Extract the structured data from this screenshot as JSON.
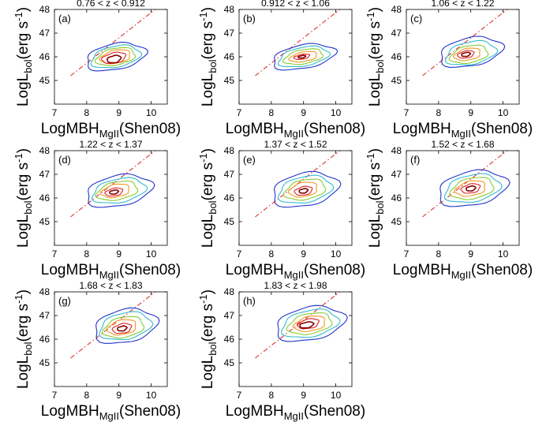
{
  "chart_data": [
    {
      "type": "contour",
      "panel_label": "(a)",
      "title": "0.76 < z < 0.912",
      "xlabel": "LogMBH",
      "xlabel_sub": "MgII",
      "xlabel_suffix": "(Shen08)",
      "ylabel": "LogL",
      "ylabel_sub": "bol",
      "ylabel_suffix": "(erg s",
      "ylabel_sup": "-1",
      "ylabel_close": ")",
      "xlim": [
        7,
        10.5
      ],
      "ylim": [
        44,
        48
      ],
      "xticks": [
        7,
        8,
        9,
        10
      ],
      "yticks": [
        45,
        46,
        47,
        48
      ],
      "reference_line": {
        "style": "dash-dot",
        "color": "#e03030",
        "points": [
          [
            7.5,
            45.2
          ],
          [
            10.5,
            48.4
          ]
        ]
      },
      "contours": [
        {
          "level": 1,
          "color": "#2233cc",
          "cx": 8.9,
          "cy": 46.0,
          "rx": 0.95,
          "ry": 0.55
        },
        {
          "level": 2,
          "color": "#33bbcc",
          "cx": 8.9,
          "cy": 46.0,
          "rx": 0.78,
          "ry": 0.45
        },
        {
          "level": 3,
          "color": "#88cc33",
          "cx": 8.9,
          "cy": 46.0,
          "rx": 0.62,
          "ry": 0.36
        },
        {
          "level": 4,
          "color": "#ee9922",
          "cx": 8.9,
          "cy": 46.0,
          "rx": 0.48,
          "ry": 0.28
        },
        {
          "level": 5,
          "color": "#dd2222",
          "cx": 8.85,
          "cy": 45.95,
          "rx": 0.38,
          "ry": 0.22
        },
        {
          "level": 6,
          "color": "#880000",
          "cx": 8.85,
          "cy": 45.9,
          "rx": 0.22,
          "ry": 0.15
        }
      ]
    },
    {
      "type": "contour",
      "panel_label": "(b)",
      "title": "0.912 < z < 1.06",
      "xlabel": "LogMBH",
      "xlabel_sub": "MgII",
      "xlabel_suffix": "(Shen08)",
      "ylabel": "LogL",
      "ylabel_sub": "bol",
      "ylabel_suffix": "(erg s",
      "ylabel_sup": "-1",
      "ylabel_close": ")",
      "xlim": [
        7,
        10.5
      ],
      "ylim": [
        44,
        48
      ],
      "xticks": [
        7,
        8,
        9,
        10
      ],
      "yticks": [
        45,
        46,
        47,
        48
      ],
      "reference_line": {
        "style": "dash-dot",
        "color": "#e03030",
        "points": [
          [
            7.5,
            45.2
          ],
          [
            10.5,
            48.4
          ]
        ]
      },
      "contours": [
        {
          "level": 1,
          "color": "#2233cc",
          "cx": 9.0,
          "cy": 46.0,
          "rx": 1.0,
          "ry": 0.5
        },
        {
          "level": 2,
          "color": "#33bbcc",
          "cx": 9.0,
          "cy": 46.0,
          "rx": 0.8,
          "ry": 0.4
        },
        {
          "level": 3,
          "color": "#88cc33",
          "cx": 9.0,
          "cy": 46.0,
          "rx": 0.62,
          "ry": 0.3
        },
        {
          "level": 4,
          "color": "#ee9922",
          "cx": 9.0,
          "cy": 46.0,
          "rx": 0.44,
          "ry": 0.2
        },
        {
          "level": 5,
          "color": "#dd2222",
          "cx": 8.95,
          "cy": 46.0,
          "rx": 0.25,
          "ry": 0.1
        },
        {
          "level": 6,
          "color": "#880000",
          "cx": 8.95,
          "cy": 46.0,
          "rx": 0.12,
          "ry": 0.05
        }
      ]
    },
    {
      "type": "contour",
      "panel_label": "(c)",
      "title": "1.06 < z < 1.22",
      "xlabel": "LogMBH",
      "xlabel_sub": "MgII",
      "xlabel_suffix": "(Shen08)",
      "ylabel": "LogL",
      "ylabel_sub": "bol",
      "ylabel_suffix": "(erg s",
      "ylabel_sup": "-1",
      "ylabel_close": ")",
      "xlim": [
        7,
        10.5
      ],
      "ylim": [
        44,
        48
      ],
      "xticks": [
        7,
        8,
        9,
        10
      ],
      "yticks": [
        45,
        46,
        47,
        48
      ],
      "reference_line": {
        "style": "dash-dot",
        "color": "#e03030",
        "points": [
          [
            7.5,
            45.2
          ],
          [
            10.5,
            48.4
          ]
        ]
      },
      "contours": [
        {
          "level": 1,
          "color": "#2233cc",
          "cx": 9.0,
          "cy": 46.2,
          "rx": 1.0,
          "ry": 0.6
        },
        {
          "level": 2,
          "color": "#33bbcc",
          "cx": 9.0,
          "cy": 46.15,
          "rx": 0.8,
          "ry": 0.48
        },
        {
          "level": 3,
          "color": "#88cc33",
          "cx": 8.95,
          "cy": 46.1,
          "rx": 0.6,
          "ry": 0.36
        },
        {
          "level": 4,
          "color": "#ee9922",
          "cx": 8.9,
          "cy": 46.1,
          "rx": 0.42,
          "ry": 0.25
        },
        {
          "level": 5,
          "color": "#dd2222",
          "cx": 8.85,
          "cy": 46.1,
          "rx": 0.26,
          "ry": 0.15
        },
        {
          "level": 6,
          "color": "#880000",
          "cx": 8.85,
          "cy": 46.1,
          "rx": 0.14,
          "ry": 0.08
        }
      ]
    },
    {
      "type": "contour",
      "panel_label": "(d)",
      "title": "1.22 < z < 1.37",
      "xlabel": "LogMBH",
      "xlabel_sub": "MgII",
      "xlabel_suffix": "(Shen08)",
      "ylabel": "LogL",
      "ylabel_sub": "bol",
      "ylabel_suffix": "(erg s",
      "ylabel_sup": "-1",
      "ylabel_close": ")",
      "xlim": [
        7,
        10.5
      ],
      "ylim": [
        44,
        48
      ],
      "xticks": [
        7,
        8,
        9,
        10
      ],
      "yticks": [
        45,
        46,
        47,
        48
      ],
      "reference_line": {
        "style": "dash-dot",
        "color": "#e03030",
        "points": [
          [
            7.5,
            45.2
          ],
          [
            10.5,
            48.4
          ]
        ]
      },
      "contours": [
        {
          "level": 1,
          "color": "#2233cc",
          "cx": 9.0,
          "cy": 46.3,
          "rx": 1.05,
          "ry": 0.65
        },
        {
          "level": 2,
          "color": "#33bbcc",
          "cx": 9.0,
          "cy": 46.3,
          "rx": 0.85,
          "ry": 0.5
        },
        {
          "level": 3,
          "color": "#88cc33",
          "cx": 8.95,
          "cy": 46.3,
          "rx": 0.65,
          "ry": 0.38
        },
        {
          "level": 4,
          "color": "#ee9922",
          "cx": 8.9,
          "cy": 46.3,
          "rx": 0.45,
          "ry": 0.27
        },
        {
          "level": 5,
          "color": "#dd2222",
          "cx": 8.85,
          "cy": 46.25,
          "rx": 0.28,
          "ry": 0.16
        },
        {
          "level": 6,
          "color": "#880000",
          "cx": 8.85,
          "cy": 46.25,
          "rx": 0.14,
          "ry": 0.08
        }
      ]
    },
    {
      "type": "contour",
      "panel_label": "(e)",
      "title": "1.37 < z < 1.52",
      "xlabel": "LogMBH",
      "xlabel_sub": "MgII",
      "xlabel_suffix": "(Shen08)",
      "ylabel": "LogL",
      "ylabel_sub": "bol",
      "ylabel_suffix": "(erg s",
      "ylabel_sup": "-1",
      "ylabel_close": ")",
      "xlim": [
        7,
        10.5
      ],
      "ylim": [
        44,
        48
      ],
      "xticks": [
        7,
        8,
        9,
        10
      ],
      "yticks": [
        45,
        46,
        47,
        48
      ],
      "reference_line": {
        "style": "dash-dot",
        "color": "#e03030",
        "points": [
          [
            7.5,
            45.2
          ],
          [
            10.5,
            48.4
          ]
        ]
      },
      "contours": [
        {
          "level": 1,
          "color": "#2233cc",
          "cx": 9.05,
          "cy": 46.35,
          "rx": 1.05,
          "ry": 0.7
        },
        {
          "level": 2,
          "color": "#33bbcc",
          "cx": 9.05,
          "cy": 46.35,
          "rx": 0.85,
          "ry": 0.55
        },
        {
          "level": 3,
          "color": "#88cc33",
          "cx": 9.05,
          "cy": 46.35,
          "rx": 0.65,
          "ry": 0.42
        },
        {
          "level": 4,
          "color": "#ee9922",
          "cx": 9.0,
          "cy": 46.35,
          "rx": 0.45,
          "ry": 0.3
        },
        {
          "level": 5,
          "color": "#dd2222",
          "cx": 9.0,
          "cy": 46.3,
          "rx": 0.28,
          "ry": 0.18
        },
        {
          "level": 6,
          "color": "#880000",
          "cx": 9.0,
          "cy": 46.3,
          "rx": 0.14,
          "ry": 0.09
        }
      ]
    },
    {
      "type": "contour",
      "panel_label": "(f)",
      "title": "1.52 < z < 1.68",
      "xlabel": "LogMBH",
      "xlabel_sub": "MgII",
      "xlabel_suffix": "(Shen08)",
      "ylabel": "LogL",
      "ylabel_sub": "bol",
      "ylabel_suffix": "(erg s",
      "ylabel_sup": "-1",
      "ylabel_close": ")",
      "xlim": [
        7,
        10.5
      ],
      "ylim": [
        44,
        48
      ],
      "xticks": [
        7,
        8,
        9,
        10
      ],
      "yticks": [
        45,
        46,
        47,
        48
      ],
      "reference_line": {
        "style": "dash-dot",
        "color": "#e03030",
        "points": [
          [
            7.5,
            45.2
          ],
          [
            10.5,
            48.4
          ]
        ]
      },
      "contours": [
        {
          "level": 1,
          "color": "#2233cc",
          "cx": 9.05,
          "cy": 46.4,
          "rx": 1.1,
          "ry": 0.72
        },
        {
          "level": 2,
          "color": "#33bbcc",
          "cx": 9.05,
          "cy": 46.4,
          "rx": 0.88,
          "ry": 0.57
        },
        {
          "level": 3,
          "color": "#88cc33",
          "cx": 9.05,
          "cy": 46.4,
          "rx": 0.68,
          "ry": 0.44
        },
        {
          "level": 4,
          "color": "#ee9922",
          "cx": 9.0,
          "cy": 46.4,
          "rx": 0.48,
          "ry": 0.31
        },
        {
          "level": 5,
          "color": "#dd2222",
          "cx": 9.0,
          "cy": 46.4,
          "rx": 0.3,
          "ry": 0.19
        },
        {
          "level": 6,
          "color": "#880000",
          "cx": 9.0,
          "cy": 46.4,
          "rx": 0.15,
          "ry": 0.1
        }
      ]
    },
    {
      "type": "contour",
      "panel_label": "(g)",
      "title": "1.68 < z < 1.83",
      "xlabel": "LogMBH",
      "xlabel_sub": "MgII",
      "xlabel_suffix": "(Shen08)",
      "ylabel": "LogL",
      "ylabel_sub": "bol",
      "ylabel_suffix": "(erg s",
      "ylabel_sup": "-1",
      "ylabel_close": ")",
      "xlim": [
        7,
        10.5
      ],
      "ylim": [
        44,
        48
      ],
      "xticks": [
        7,
        8,
        9,
        10
      ],
      "yticks": [
        45,
        46,
        47,
        48
      ],
      "reference_line": {
        "style": "dash-dot",
        "color": "#e03030",
        "points": [
          [
            7.5,
            45.2
          ],
          [
            10.5,
            48.4
          ]
        ]
      },
      "contours": [
        {
          "level": 1,
          "color": "#2233cc",
          "cx": 9.2,
          "cy": 46.55,
          "rx": 1.0,
          "ry": 0.7
        },
        {
          "level": 2,
          "color": "#33bbcc",
          "cx": 9.2,
          "cy": 46.55,
          "rx": 0.82,
          "ry": 0.56
        },
        {
          "level": 3,
          "color": "#88cc33",
          "cx": 9.15,
          "cy": 46.5,
          "rx": 0.64,
          "ry": 0.43
        },
        {
          "level": 4,
          "color": "#ee9922",
          "cx": 9.1,
          "cy": 46.5,
          "rx": 0.46,
          "ry": 0.31
        },
        {
          "level": 5,
          "color": "#dd2222",
          "cx": 9.1,
          "cy": 46.45,
          "rx": 0.3,
          "ry": 0.2
        },
        {
          "level": 6,
          "color": "#880000",
          "cx": 9.1,
          "cy": 46.45,
          "rx": 0.15,
          "ry": 0.1
        }
      ]
    },
    {
      "type": "contour",
      "panel_label": "(h)",
      "title": "1.83 < z < 1.98",
      "xlabel": "LogMBH",
      "xlabel_sub": "MgII",
      "xlabel_suffix": "(Shen08)",
      "ylabel": "LogL",
      "ylabel_sub": "bol",
      "ylabel_suffix": "(erg s",
      "ylabel_sup": "-1",
      "ylabel_close": ")",
      "xlim": [
        7,
        10.5
      ],
      "ylim": [
        44,
        48
      ],
      "xticks": [
        7,
        8,
        9,
        10
      ],
      "yticks": [
        45,
        46,
        47,
        48
      ],
      "reference_line": {
        "style": "dash-dot",
        "color": "#e03030",
        "points": [
          [
            7.5,
            45.2
          ],
          [
            10.5,
            48.4
          ]
        ]
      },
      "contours": [
        {
          "level": 1,
          "color": "#2233cc",
          "cx": 9.2,
          "cy": 46.65,
          "rx": 1.1,
          "ry": 0.7
        },
        {
          "level": 2,
          "color": "#33bbcc",
          "cx": 9.2,
          "cy": 46.65,
          "rx": 0.9,
          "ry": 0.56
        },
        {
          "level": 3,
          "color": "#88cc33",
          "cx": 9.2,
          "cy": 46.65,
          "rx": 0.7,
          "ry": 0.43
        },
        {
          "level": 4,
          "color": "#ee9922",
          "cx": 9.2,
          "cy": 46.65,
          "rx": 0.5,
          "ry": 0.31
        },
        {
          "level": 5,
          "color": "#dd2222",
          "cx": 9.15,
          "cy": 46.65,
          "rx": 0.34,
          "ry": 0.2
        },
        {
          "level": 6,
          "color": "#880000",
          "cx": 9.1,
          "cy": 46.6,
          "rx": 0.22,
          "ry": 0.12
        }
      ]
    }
  ]
}
